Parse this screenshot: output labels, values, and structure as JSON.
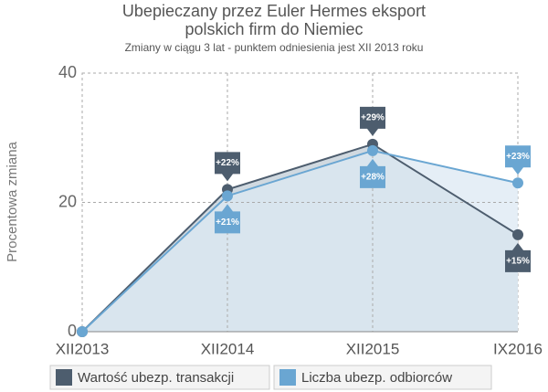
{
  "chart_data": {
    "type": "line",
    "title": [
      "Ubepieczany przez Euler Hermes eksport",
      "polskich firm do Niemiec"
    ],
    "subtitle": "Zmiany w ciągu 3 lat - punktem odniesienia jest XII 2013 roku",
    "y_label": "Procentowa zmiana",
    "categories": [
      "XII2013",
      "XII2014",
      "XII2015",
      "IX2016"
    ],
    "series": [
      {
        "name": "Wartość ubezp. transakcji",
        "color": "#4d5d6e",
        "fill": "#c8d2db",
        "values": [
          0,
          22,
          29,
          15
        ],
        "value_labels": [
          null,
          "+22%",
          "+29%",
          "+15%"
        ]
      },
      {
        "name": "Liczba ubezp. odbiorców",
        "color": "#6aa6d2",
        "fill": "#dce8f3",
        "values": [
          0,
          21,
          28,
          23
        ],
        "value_labels": [
          null,
          "+21%",
          "+28%",
          "+23%"
        ]
      }
    ],
    "ylim": [
      0,
      40
    ],
    "yticks": [
      0,
      20,
      40
    ],
    "grid": true
  }
}
